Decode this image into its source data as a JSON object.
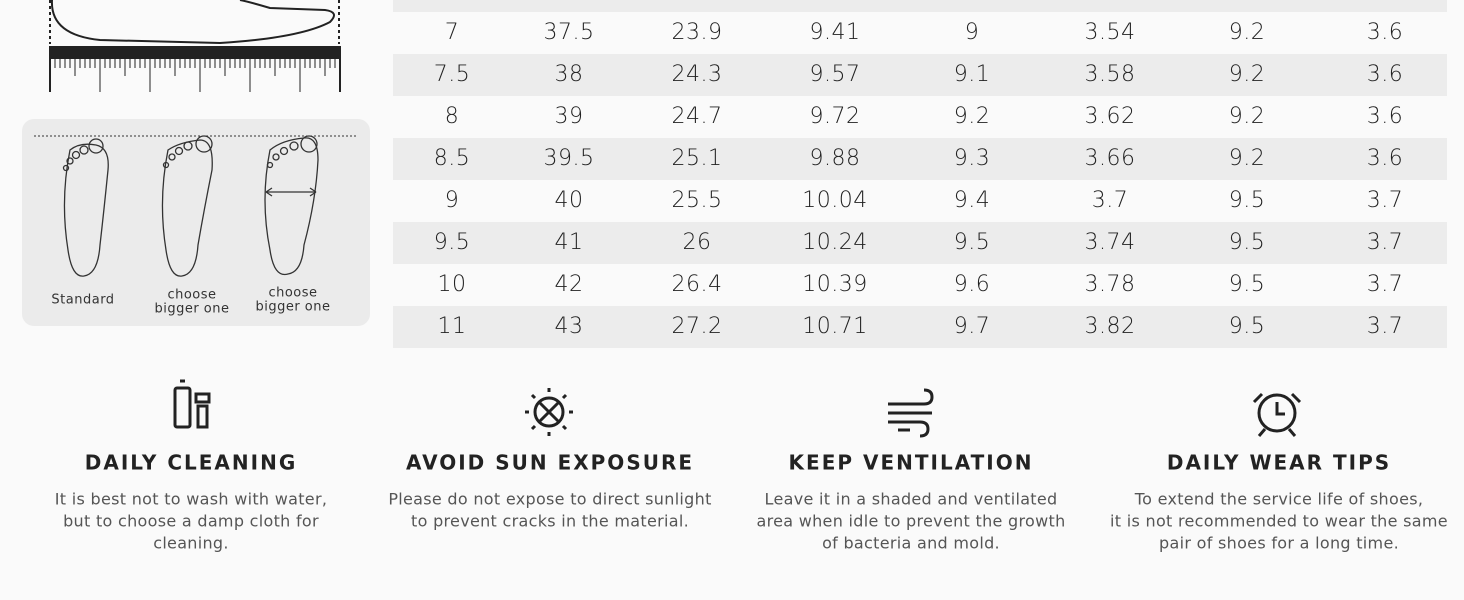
{
  "foot_guide": {
    "labels": [
      [
        "Standard"
      ],
      [
        "choose",
        "bigger one"
      ],
      [
        "choose",
        "bigger one"
      ]
    ]
  },
  "table": {
    "rows": [
      [
        "7",
        "37.5",
        "23.9",
        "9.41",
        "9",
        "3.54",
        "9.2",
        "3.6"
      ],
      [
        "7.5",
        "38",
        "24.3",
        "9.57",
        "9.1",
        "3.58",
        "9.2",
        "3.6"
      ],
      [
        "8",
        "39",
        "24.7",
        "9.72",
        "9.2",
        "3.62",
        "9.2",
        "3.6"
      ],
      [
        "8.5",
        "39.5",
        "25.1",
        "9.88",
        "9.3",
        "3.66",
        "9.2",
        "3.6"
      ],
      [
        "9",
        "40",
        "25.5",
        "10.04",
        "9.4",
        "3.7",
        "9.5",
        "3.7"
      ],
      [
        "9.5",
        "41",
        "26",
        "10.24",
        "9.5",
        "3.74",
        "9.5",
        "3.7"
      ],
      [
        "10",
        "42",
        "26.4",
        "10.39",
        "9.6",
        "3.78",
        "9.5",
        "3.7"
      ],
      [
        "11",
        "43",
        "27.2",
        "10.71",
        "9.7",
        "3.82",
        "9.5",
        "3.7"
      ]
    ]
  },
  "tips": [
    {
      "title": "DAILY CLEANING",
      "lines": [
        "It is best not to wash with water,",
        "but to choose a damp cloth for",
        "cleaning."
      ]
    },
    {
      "title": "AVOID SUN EXPOSURE",
      "lines": [
        "Please do not expose to direct sunlight",
        "to prevent cracks in the material."
      ]
    },
    {
      "title": "KEEP VENTILATION",
      "lines": [
        "Leave it in a shaded and ventilated",
        "area when idle to prevent the growth",
        "of bacteria and mold."
      ]
    },
    {
      "title": "DAILY WEAR TIPS",
      "lines": [
        "To extend the service life of shoes,",
        "it is not recommended to wear the same",
        "pair of shoes for a long time."
      ]
    }
  ]
}
